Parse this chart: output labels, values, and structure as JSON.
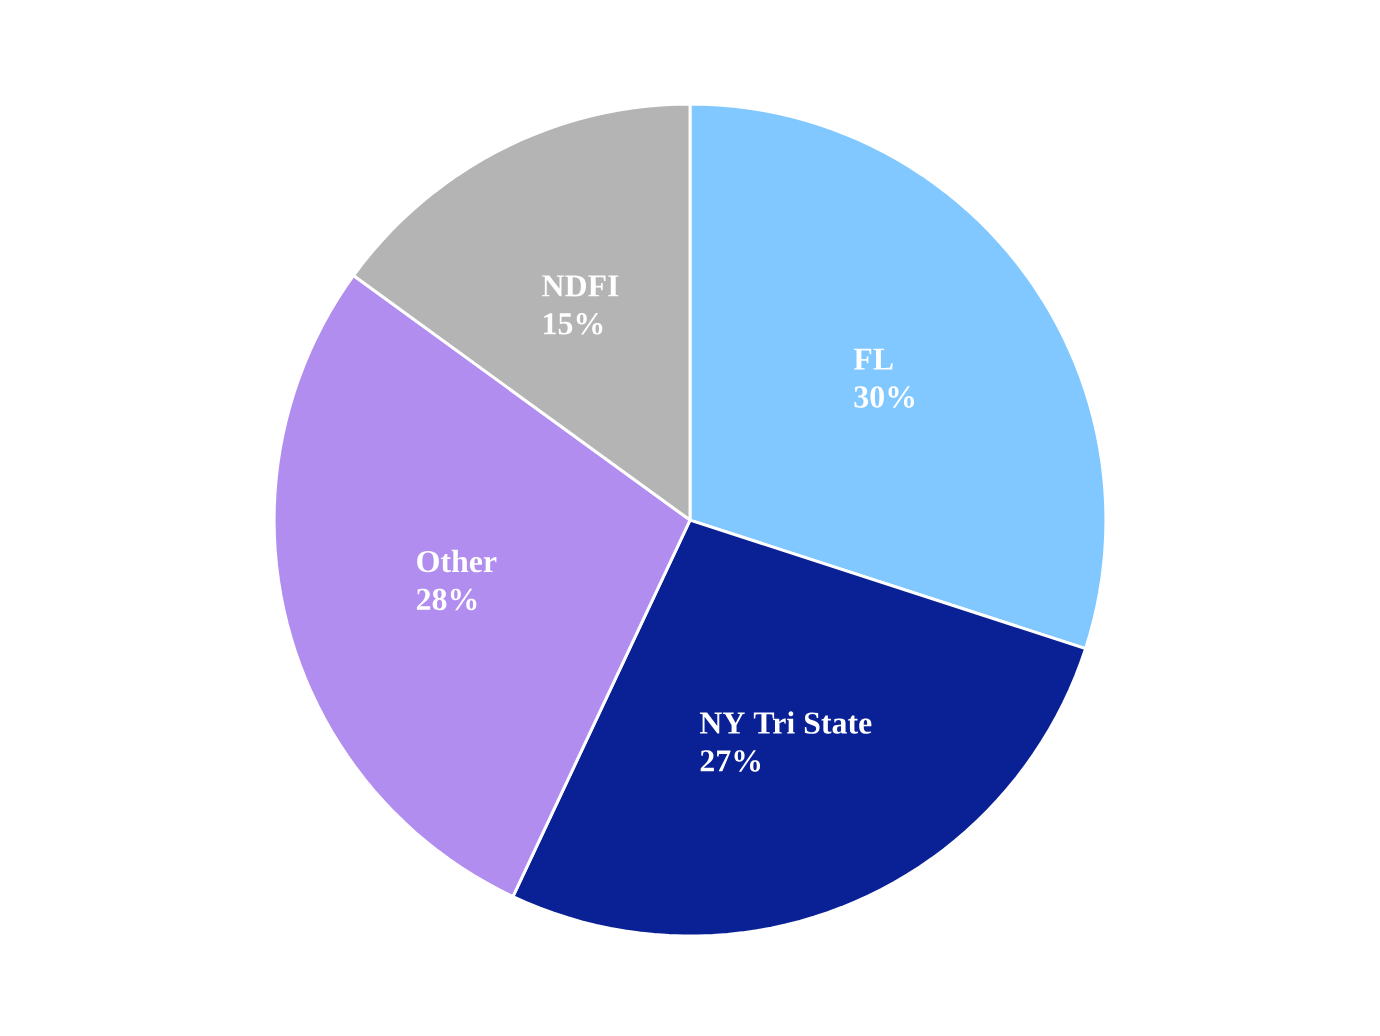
{
  "chart_data": {
    "type": "pie",
    "categories": [
      "FL",
      "NY Tri State",
      "Other",
      "NDFI"
    ],
    "values": [
      30,
      27,
      28,
      15
    ],
    "value_labels": [
      "30%",
      "27%",
      "28%",
      "15%"
    ],
    "colors": [
      "#80c8ff",
      "#0a2196",
      "#b28df0",
      "#b4b4b4"
    ]
  }
}
